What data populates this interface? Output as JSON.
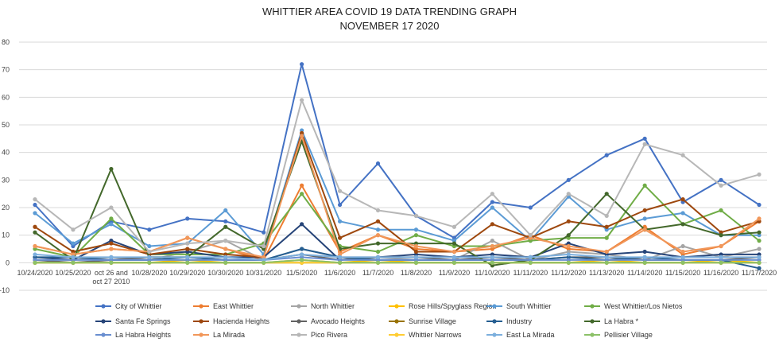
{
  "chart_data": {
    "type": "line",
    "title": "WHITTIER AREA COVID 19 DATA TRENDING GRAPH",
    "subtitle": "NOVEMBER 17 2020",
    "xlabel": "",
    "ylabel": "",
    "ylim": [
      -10,
      80
    ],
    "yticks": [
      "-10",
      "0",
      "10",
      "20",
      "30",
      "40",
      "50",
      "60",
      "70",
      "80"
    ],
    "grid": true,
    "legend_position": "bottom",
    "categories": [
      "10/24/2020",
      "10/25/2020",
      "oct 26 and oct 27 2010",
      "10/28/2020",
      "10/29/2020",
      "10/30/2020",
      "10/31/2020",
      "11/5/2020",
      "11/6/2020",
      "11/7/2020",
      "11/8/2020",
      "11/9/2020",
      "11/10/2020",
      "11/11/2020",
      "11/12/2020",
      "11/13/2020",
      "11/14/2020",
      "11/15/2020",
      "11/16/2020",
      "11/17/2020"
    ],
    "category_lines": [
      [
        "10/24/2020"
      ],
      [
        "10/25/2020"
      ],
      [
        "oct 26 and",
        "oct 27 2010"
      ],
      [
        "10/28/2020"
      ],
      [
        "10/29/2020"
      ],
      [
        "10/30/2020"
      ],
      [
        "10/31/2020"
      ],
      [
        "11/5/2020"
      ],
      [
        "11/6/2020"
      ],
      [
        "11/7/2020"
      ],
      [
        "11/8/2020"
      ],
      [
        "11/9/2020"
      ],
      [
        "11/10/2020"
      ],
      [
        "11/11/2020"
      ],
      [
        "11/12/2020"
      ],
      [
        "11/13/2020"
      ],
      [
        "11/14/2020"
      ],
      [
        "11/15/2020"
      ],
      [
        "11/16/2020"
      ],
      [
        "11/17/2020"
      ]
    ],
    "series": [
      {
        "name": "City of Whittier",
        "color": "#4472c4",
        "values": [
          21,
          6,
          15,
          12,
          16,
          15,
          11,
          72,
          21,
          36,
          17,
          9,
          22,
          20,
          30,
          39,
          45,
          22,
          30,
          21
        ]
      },
      {
        "name": "East Whittier",
        "color": "#ed7d31",
        "values": [
          6,
          3,
          5,
          4,
          9,
          5,
          1,
          28,
          4,
          10,
          5,
          4,
          5,
          10,
          5,
          4,
          13,
          3,
          6,
          15
        ]
      },
      {
        "name": "North Whittier",
        "color": "#a5a5a5",
        "values": [
          1,
          1,
          2,
          1,
          4,
          8,
          1,
          5,
          2,
          2,
          1,
          1,
          8,
          1,
          4,
          3,
          1,
          6,
          2,
          5
        ]
      },
      {
        "name": "Rose Hills/Spyglass Region",
        "color": "#ffc000",
        "values": [
          0,
          0,
          0,
          0,
          1,
          0,
          0,
          1,
          0,
          1,
          0,
          0,
          0,
          0,
          0,
          1,
          0,
          0,
          1,
          0
        ]
      },
      {
        "name": "South Whittier",
        "color": "#5b9bd5",
        "values": [
          18,
          7,
          14,
          6,
          7,
          19,
          3,
          48,
          15,
          12,
          12,
          8,
          20,
          8,
          24,
          12,
          16,
          18,
          10,
          10
        ]
      },
      {
        "name": "West Whittier/Los Nietos",
        "color": "#70ad47",
        "values": [
          5,
          2,
          16,
          3,
          3,
          3,
          7,
          25,
          6,
          4,
          10,
          6,
          6,
          8,
          9,
          9,
          28,
          14,
          19,
          8
        ]
      },
      {
        "name": "Santa Fe Springs",
        "color": "#264478",
        "values": [
          2,
          1,
          8,
          3,
          4,
          2,
          2,
          14,
          1,
          2,
          3,
          2,
          3,
          2,
          7,
          3,
          4,
          2,
          3,
          3
        ]
      },
      {
        "name": "Hacienda Heights",
        "color": "#9e480e",
        "values": [
          13,
          4,
          7,
          3,
          5,
          3,
          2,
          47,
          9,
          15,
          4,
          4,
          14,
          9,
          15,
          13,
          19,
          23,
          11,
          15
        ]
      },
      {
        "name": "Avocado Heights",
        "color": "#636363",
        "values": [
          1,
          0,
          1,
          2,
          2,
          1,
          1,
          3,
          1,
          2,
          2,
          1,
          2,
          1,
          2,
          2,
          1,
          1,
          1,
          2
        ]
      },
      {
        "name": "Sunrise Village",
        "color": "#997300",
        "values": [
          0,
          0,
          0,
          0,
          0,
          0,
          0,
          0,
          0,
          0,
          0,
          0,
          0,
          0,
          0,
          0,
          0,
          0,
          0,
          0
        ]
      },
      {
        "name": "Industry",
        "color": "#255e91",
        "values": [
          2,
          2,
          1,
          1,
          2,
          1,
          1,
          5,
          2,
          1,
          1,
          1,
          1,
          1,
          2,
          1,
          2,
          1,
          1,
          -2
        ]
      },
      {
        "name": "La Habra *",
        "color": "#43682b",
        "values": [
          11,
          1,
          34,
          2,
          2,
          13,
          5,
          44,
          5,
          7,
          7,
          7,
          -1,
          1,
          10,
          25,
          12,
          14,
          10,
          11
        ]
      },
      {
        "name": "La Habra Heights",
        "color": "#698ed0",
        "values": [
          1,
          1,
          1,
          1,
          1,
          1,
          1,
          2,
          1,
          1,
          1,
          1,
          1,
          1,
          1,
          1,
          1,
          1,
          1,
          1
        ]
      },
      {
        "name": "La Mirada",
        "color": "#f1975a",
        "values": [
          6,
          3,
          5,
          4,
          9,
          5,
          2,
          46,
          3,
          10,
          6,
          4,
          6,
          9,
          6,
          4,
          12,
          4,
          6,
          16
        ]
      },
      {
        "name": "Pico Rivera",
        "color": "#b7b7b7",
        "values": [
          23,
          12,
          20,
          4,
          7,
          8,
          6,
          59,
          26,
          19,
          17,
          13,
          25,
          10,
          25,
          17,
          43,
          39,
          28,
          32
        ]
      },
      {
        "name": "Whittier Narrows",
        "color": "#ffcd33",
        "values": [
          0,
          0,
          0,
          0,
          0,
          0,
          0,
          0,
          0,
          0,
          0,
          0,
          0,
          0,
          0,
          0,
          0,
          0,
          0,
          0
        ]
      },
      {
        "name": "East La Mirada",
        "color": "#7cafdd",
        "values": [
          3,
          2,
          2,
          2,
          2,
          2,
          1,
          3,
          2,
          2,
          2,
          2,
          2,
          2,
          3,
          2,
          2,
          2,
          2,
          2
        ]
      },
      {
        "name": "Pellisier Village",
        "color": "#8cc168",
        "values": [
          0,
          0,
          0,
          0,
          0,
          0,
          0,
          1,
          0,
          0,
          0,
          0,
          0,
          0,
          0,
          0,
          0,
          0,
          0,
          0
        ]
      }
    ]
  }
}
